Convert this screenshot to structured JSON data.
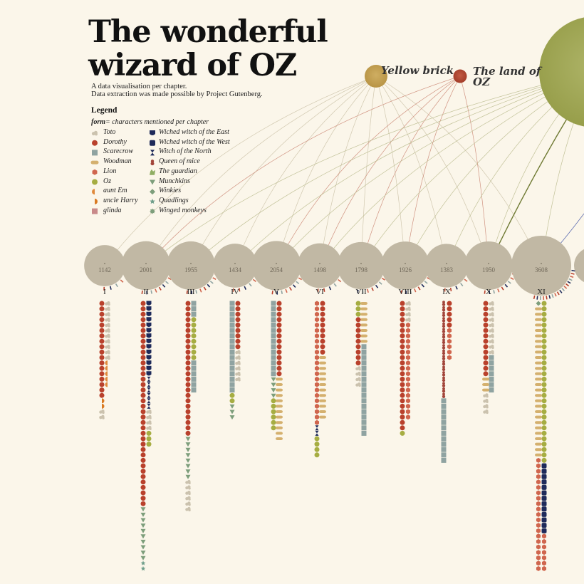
{
  "header": {
    "title_line1": "The wonderful",
    "title_line2": "wizard of OZ",
    "subtitle_line1": "A data visualisation per chapter.",
    "subtitle_line2": "Data extraction was made possible by Project Gutenberg."
  },
  "legend": {
    "title": "Legend",
    "form_key": "form",
    "form_text": "= characters mentioned per chapter",
    "col1": [
      {
        "name": "Toto",
        "shape": "cloud",
        "color": "#cbc2ae"
      },
      {
        "name": "Dorothy",
        "shape": "circle",
        "color": "#b9412c"
      },
      {
        "name": "Scarecrow",
        "shape": "square",
        "color": "#8fa3a1"
      },
      {
        "name": "Woodman",
        "shape": "pill",
        "color": "#d4b06e"
      },
      {
        "name": "Lion",
        "shape": "hexagon",
        "color": "#d0664e"
      },
      {
        "name": "Oz",
        "shape": "circle",
        "color": "#a6ad42"
      },
      {
        "name": "aunt Em",
        "shape": "halfleft",
        "color": "#e08a3c"
      },
      {
        "name": "uncle Harry",
        "shape": "halfright",
        "color": "#d97a22"
      },
      {
        "name": "glinda",
        "shape": "square",
        "color": "#c98a8a"
      }
    ],
    "col2": [
      {
        "name": "Wiched witch of the East",
        "shape": "shield",
        "color": "#1e2a5a"
      },
      {
        "name": "Wiched witch of the West",
        "shape": "roundsq",
        "color": "#1e2a5a"
      },
      {
        "name": "Witch of the North",
        "shape": "hourglass",
        "color": "#1e2a5a"
      },
      {
        "name": "Queen of mice",
        "shape": "snowman",
        "color": "#a2453a"
      },
      {
        "name": "The guardian",
        "shape": "blob",
        "color": "#8fae63"
      },
      {
        "name": "Munchkins",
        "shape": "triangle",
        "color": "#7d9e7b"
      },
      {
        "name": "Winkies",
        "shape": "diamond",
        "color": "#7d9e7b"
      },
      {
        "name": "Quadlings",
        "shape": "star",
        "color": "#6e9e8a"
      },
      {
        "name": "Winged monkeys",
        "shape": "gear",
        "color": "#7d9e7b"
      }
    ]
  },
  "colors": {
    "background": "#fbf6ea",
    "chapter_bubble": "#c1b8a4",
    "yellow_brick": "#c6a356",
    "land_of_oz": "#b54a34",
    "oz_theme": "#a6ad5a",
    "arc": "#c9bfa4"
  },
  "themes": [
    {
      "label": "Yellow brick",
      "color": "#c6a356"
    },
    {
      "label_line1": "The land of",
      "label_line2": "OZ",
      "color": "#b54a34"
    }
  ],
  "chart_data": {
    "type": "bubble-timeline",
    "description_ref": "header",
    "chapters": [
      {
        "numeral": "I",
        "words": 1142,
        "stack": [
          [
            "Dorothy",
            18
          ],
          [
            "Toto",
            11
          ],
          [
            "aunt Em",
            5
          ],
          [
            "uncle Harry",
            2
          ],
          [
            "Toto",
            2
          ]
        ]
      },
      {
        "numeral": "II",
        "words": 2001,
        "stack": [
          [
            "Dorothy",
            38
          ],
          [
            "Wiched witch of the East",
            14
          ],
          [
            "Witch of the North",
            6
          ],
          [
            "Munchkins",
            10
          ],
          [
            "Quadlings",
            2
          ],
          [
            "Toto",
            4
          ],
          [
            "Oz",
            3
          ]
        ]
      },
      {
        "numeral": "III",
        "words": 1955,
        "stack": [
          [
            "Dorothy",
            25
          ],
          [
            "Scarecrow",
            3
          ],
          [
            "Oz",
            8
          ],
          [
            "Munchkins",
            8
          ],
          [
            "Toto",
            6
          ],
          [
            "Scarecrow",
            6
          ]
        ]
      },
      {
        "numeral": "IV",
        "words": 1434,
        "stack": [
          [
            "Scarecrow",
            17
          ],
          [
            "Dorothy",
            9
          ],
          [
            "Toto",
            6
          ],
          [
            "Oz",
            2
          ],
          [
            "Munchkins",
            3
          ]
        ]
      },
      {
        "numeral": "V",
        "words": 2054,
        "stack": [
          [
            "Scarecrow",
            14
          ],
          [
            "Dorothy",
            14
          ],
          [
            "Woodman",
            12
          ],
          [
            "Munchkins",
            4
          ],
          [
            "Oz",
            6
          ]
        ]
      },
      {
        "numeral": "VI",
        "words": 1498,
        "stack": [
          [
            "Lion",
            23
          ],
          [
            "Dorothy",
            10
          ],
          [
            "Woodman",
            12
          ],
          [
            "Hourglass",
            2
          ],
          [
            "Oz",
            4
          ]
        ]
      },
      {
        "numeral": "VII",
        "words": 1798,
        "stack": [
          [
            "Oz",
            3
          ],
          [
            "Woodman",
            8
          ],
          [
            "Scarecrow",
            17
          ],
          [
            "Dorothy",
            9
          ],
          [
            "Toto",
            4
          ]
        ]
      },
      {
        "numeral": "VIII",
        "words": 1926,
        "stack": [
          [
            "Dorothy",
            24
          ],
          [
            "Toto",
            4
          ],
          [
            "Lion",
            18
          ],
          [
            "Oz",
            1
          ]
        ]
      },
      {
        "numeral": "IX",
        "words": 1383,
        "stack": [
          [
            "Queen of mice",
            18
          ],
          [
            "Dorothy",
            5
          ],
          [
            "Lion",
            6
          ],
          [
            "Scarecrow",
            12
          ]
        ]
      },
      {
        "numeral": "X",
        "words": 1950,
        "stack": [
          [
            "Dorothy",
            14
          ],
          [
            "Toto",
            10
          ],
          [
            "Scarecrow",
            7
          ],
          [
            "Woodman",
            3
          ],
          [
            "Toto",
            4
          ]
        ]
      },
      {
        "numeral": "XI",
        "words": 3608,
        "stack": [
          [
            "Winkies",
            1
          ],
          [
            "Oz",
            30
          ],
          [
            "Wiched witch of the West",
            13
          ],
          [
            "Woodman",
            28
          ],
          [
            "Lion",
            28
          ]
        ]
      }
    ]
  }
}
